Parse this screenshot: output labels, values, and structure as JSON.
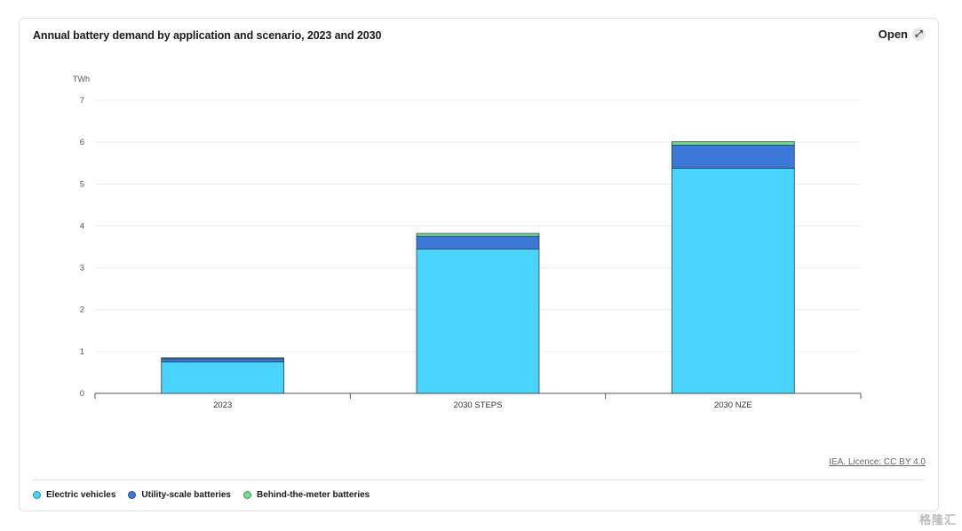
{
  "header": {
    "title": "Annual battery demand by application and scenario, 2023 and 2030",
    "open_label": "Open",
    "open_icon": "expand-icon"
  },
  "footer": {
    "licence": "IEA. Licence: CC BY 4.0",
    "watermark": "格隆汇"
  },
  "chart_data": {
    "type": "bar",
    "stacked": true,
    "ylabel": "TWh",
    "ylim": [
      0,
      7
    ],
    "yticks": [
      0,
      1,
      2,
      3,
      4,
      5,
      6,
      7
    ],
    "grid": true,
    "legend_position": "bottom-left",
    "categories": [
      "2023",
      "2030 STEPS",
      "2030 NZE"
    ],
    "series": [
      {
        "name": "Electric vehicles",
        "color": "#48d4fd",
        "values": [
          0.75,
          3.45,
          5.38
        ]
      },
      {
        "name": "Utility-scale batteries",
        "color": "#3c78d8",
        "values": [
          0.08,
          0.3,
          0.55
        ]
      },
      {
        "name": "Behind-the-meter batteries",
        "color": "#6fdc8c",
        "values": [
          0.02,
          0.07,
          0.08
        ]
      }
    ]
  }
}
